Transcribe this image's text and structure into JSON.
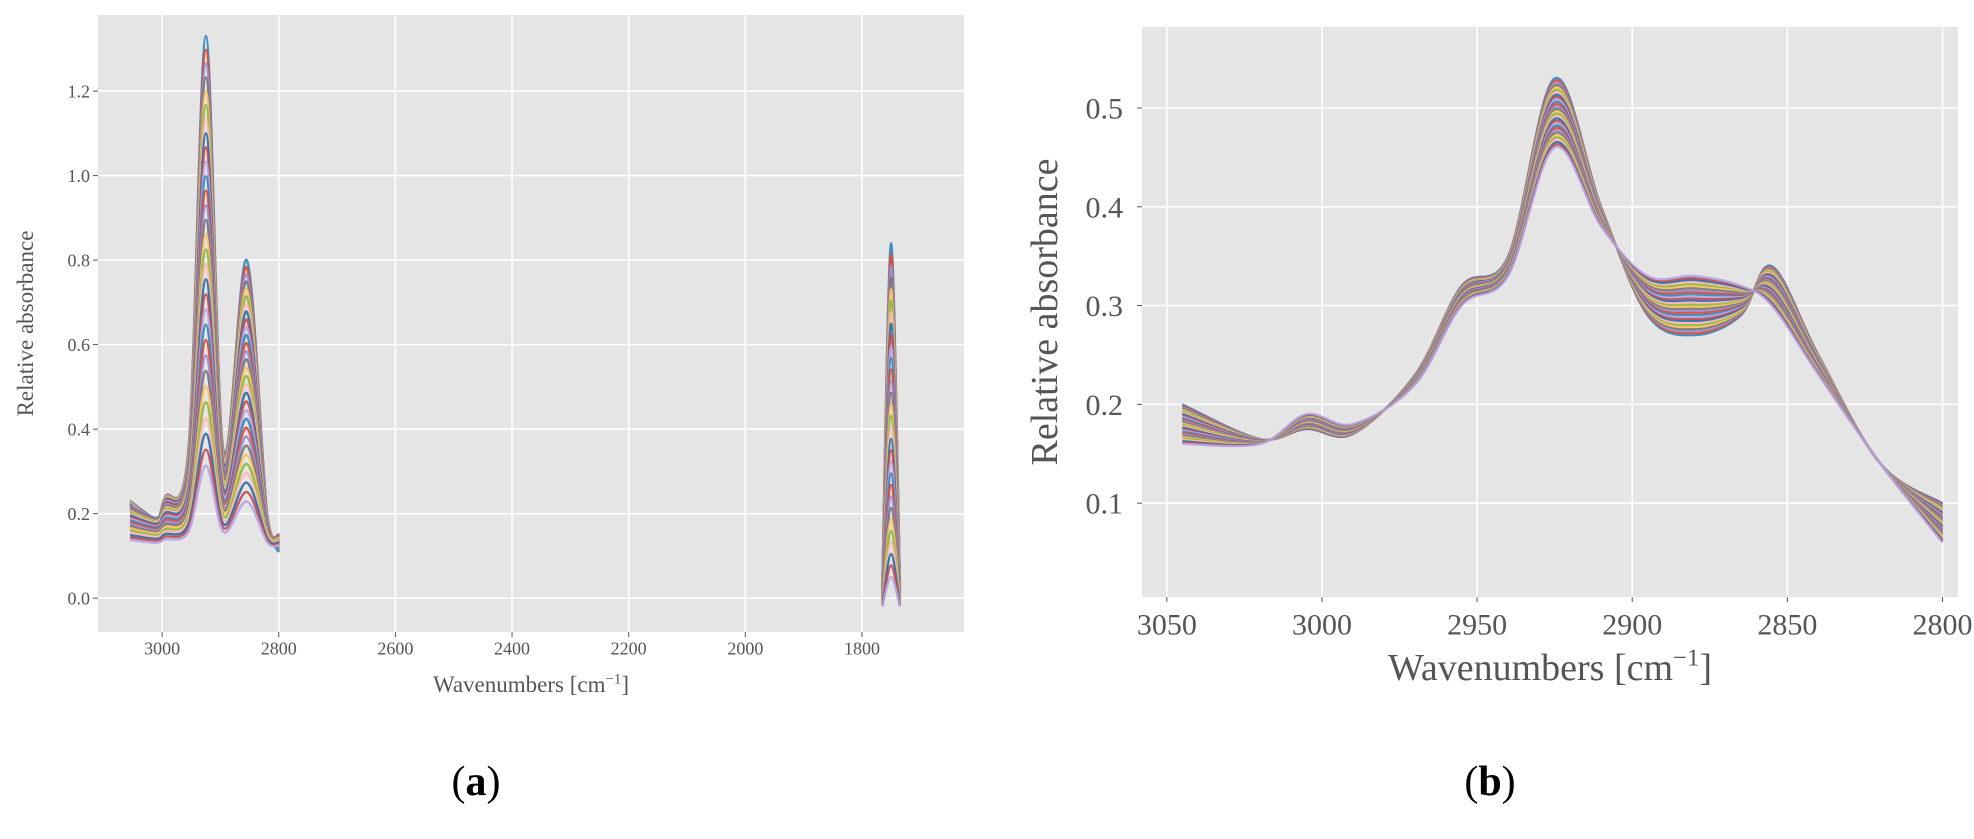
{
  "panels": {
    "a": {
      "label": "a"
    },
    "b": {
      "label": "b"
    }
  },
  "colors": {
    "panel_background": "#e5e5e5",
    "grid": "#ffffff",
    "tick_text": "#555555",
    "series_palette": [
      "#348abd",
      "#e24a33",
      "#988ed5",
      "#777777",
      "#fbc15e",
      "#8eba42",
      "#ffb5b8",
      "#2e6fa7",
      "#c44e52",
      "#b3a5e6"
    ]
  },
  "chart_data": [
    {
      "id": "a",
      "type": "line",
      "title": "",
      "xlabel": "Wavenumbers [cm⁻¹]",
      "ylabel": "Relative absorbance",
      "xlim": [
        3110,
        1625
      ],
      "ylim": [
        -0.08,
        1.38
      ],
      "x_inverted": true,
      "grid": true,
      "legend": "none",
      "xticks": [
        3000,
        2800,
        2600,
        2400,
        2200,
        2000,
        1800
      ],
      "xtick_labels": [
        "3000",
        "2800",
        "2600",
        "2400",
        "2200",
        "2000",
        "1800"
      ],
      "yticks": [
        0.0,
        0.2,
        0.4,
        0.6,
        0.8,
        1.0,
        1.2
      ],
      "ytick_labels": [
        "0.0",
        "0.2",
        "0.4",
        "0.6",
        "0.8",
        "1.0",
        "1.2"
      ],
      "series_count": 30,
      "segments": [
        [
          3055,
          2800
        ],
        [
          1765,
          1735
        ]
      ],
      "series": [
        {
          "values": [
            [
              3055,
              0.23
            ],
            [
              3010,
              0.19
            ],
            [
              2995,
              0.24
            ],
            [
              2955,
              0.35
            ],
            [
              2925,
              1.33
            ],
            [
              2895,
              0.35
            ],
            [
              2855,
              0.8
            ],
            [
              2820,
              0.2
            ],
            [
              2800,
              0.15
            ]
          ]
        },
        {
          "values": [
            [
              1765,
              0.02
            ],
            [
              1750,
              0.84
            ],
            [
              1735,
              0.02
            ]
          ]
        }
      ]
    },
    {
      "id": "b",
      "type": "line",
      "title": "",
      "xlabel": "Wavenumbers [cm⁻¹]",
      "ylabel": "Relative absorbance",
      "xlim": [
        3058,
        2795
      ],
      "ylim": [
        0.005,
        0.582
      ],
      "x_inverted": true,
      "grid": true,
      "legend": "none",
      "xticks": [
        3050,
        3000,
        2950,
        2900,
        2850,
        2800
      ],
      "xtick_labels": [
        "3050",
        "3000",
        "2950",
        "2900",
        "2850",
        "2800"
      ],
      "yticks": [
        0.1,
        0.2,
        0.3,
        0.4,
        0.5
      ],
      "ytick_labels": [
        "0.1",
        "0.2",
        "0.3",
        "0.4",
        "0.5"
      ],
      "series_count": 30,
      "series": [
        {
          "values": [
            [
              3045,
              0.2
            ],
            [
              3020,
              0.165
            ],
            [
              3005,
              0.175
            ],
            [
              2990,
              0.17
            ],
            [
              2970,
              0.23
            ],
            [
              2955,
              0.32
            ],
            [
              2940,
              0.35
            ],
            [
              2925,
              0.53
            ],
            [
              2910,
              0.4
            ],
            [
              2895,
              0.29
            ],
            [
              2880,
              0.27
            ],
            [
              2865,
              0.29
            ],
            [
              2855,
              0.34
            ],
            [
              2840,
              0.25
            ],
            [
              2820,
              0.14
            ],
            [
              2800,
              0.1
            ]
          ]
        },
        {
          "values": [
            [
              3045,
              0.16
            ],
            [
              3020,
              0.16
            ],
            [
              3005,
              0.19
            ],
            [
              2990,
              0.18
            ],
            [
              2970,
              0.22
            ],
            [
              2955,
              0.3
            ],
            [
              2940,
              0.33
            ],
            [
              2925,
              0.46
            ],
            [
              2910,
              0.38
            ],
            [
              2895,
              0.33
            ],
            [
              2880,
              0.33
            ],
            [
              2865,
              0.32
            ],
            [
              2855,
              0.3
            ],
            [
              2840,
              0.23
            ],
            [
              2820,
              0.14
            ],
            [
              2800,
              0.06
            ]
          ]
        }
      ]
    }
  ]
}
